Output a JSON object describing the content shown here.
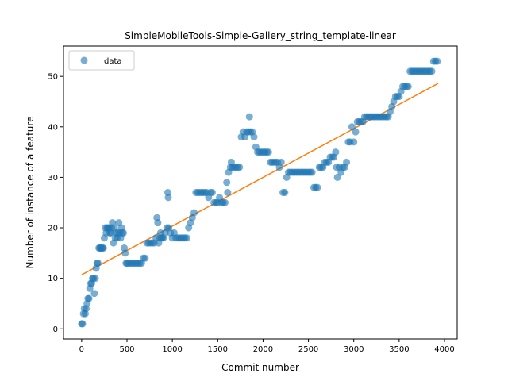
{
  "chart_data": {
    "type": "scatter",
    "title": "SimpleMobileTools-Simple-Gallery_string_template-linear",
    "xlabel": "Commit number",
    "ylabel": "Number of instance of a feature",
    "xlim": [
      -200,
      4140
    ],
    "ylim": [
      -2,
      56
    ],
    "xticks": [
      0,
      500,
      1000,
      1500,
      2000,
      2500,
      3000,
      3500,
      4000
    ],
    "yticks": [
      0,
      10,
      20,
      30,
      40,
      50
    ],
    "grid": false,
    "legend": {
      "position": "top-left",
      "entries": [
        "data"
      ]
    },
    "colors": {
      "data": "#1f77b4",
      "fit": "#ff7f0e"
    },
    "series": [
      {
        "name": "data",
        "kind": "scatter",
        "points": [
          [
            0,
            1
          ],
          [
            10,
            1
          ],
          [
            20,
            3
          ],
          [
            30,
            4
          ],
          [
            40,
            3
          ],
          [
            50,
            4
          ],
          [
            60,
            5
          ],
          [
            70,
            6
          ],
          [
            80,
            6
          ],
          [
            90,
            8
          ],
          [
            100,
            9
          ],
          [
            110,
            9
          ],
          [
            120,
            10
          ],
          [
            130,
            10
          ],
          [
            140,
            7
          ],
          [
            150,
            10
          ],
          [
            160,
            12
          ],
          [
            170,
            13
          ],
          [
            180,
            13
          ],
          [
            190,
            16
          ],
          [
            200,
            16
          ],
          [
            210,
            16
          ],
          [
            220,
            16
          ],
          [
            230,
            16
          ],
          [
            240,
            16
          ],
          [
            250,
            18
          ],
          [
            260,
            20
          ],
          [
            270,
            19
          ],
          [
            280,
            20
          ],
          [
            290,
            20
          ],
          [
            300,
            20
          ],
          [
            310,
            19
          ],
          [
            320,
            19
          ],
          [
            330,
            20
          ],
          [
            340,
            21
          ],
          [
            350,
            17
          ],
          [
            360,
            20
          ],
          [
            370,
            18
          ],
          [
            380,
            19
          ],
          [
            390,
            18
          ],
          [
            400,
            19
          ],
          [
            410,
            21
          ],
          [
            420,
            19
          ],
          [
            430,
            18
          ],
          [
            440,
            20
          ],
          [
            450,
            19
          ],
          [
            460,
            19
          ],
          [
            470,
            16
          ],
          [
            480,
            15
          ],
          [
            490,
            13
          ],
          [
            500,
            13
          ],
          [
            520,
            13
          ],
          [
            540,
            13
          ],
          [
            560,
            13
          ],
          [
            580,
            13
          ],
          [
            600,
            13
          ],
          [
            620,
            13
          ],
          [
            640,
            13
          ],
          [
            660,
            13
          ],
          [
            680,
            14
          ],
          [
            700,
            14
          ],
          [
            720,
            17
          ],
          [
            740,
            17
          ],
          [
            760,
            17
          ],
          [
            780,
            17
          ],
          [
            800,
            17
          ],
          [
            820,
            18
          ],
          [
            830,
            22
          ],
          [
            840,
            21
          ],
          [
            850,
            17
          ],
          [
            860,
            18
          ],
          [
            870,
            19
          ],
          [
            880,
            18
          ],
          [
            890,
            18
          ],
          [
            900,
            18
          ],
          [
            920,
            19
          ],
          [
            940,
            20
          ],
          [
            950,
            27
          ],
          [
            955,
            26
          ],
          [
            960,
            20
          ],
          [
            980,
            19
          ],
          [
            1000,
            18
          ],
          [
            1020,
            19
          ],
          [
            1040,
            18
          ],
          [
            1060,
            18
          ],
          [
            1080,
            18
          ],
          [
            1100,
            18
          ],
          [
            1120,
            18
          ],
          [
            1140,
            18
          ],
          [
            1160,
            18
          ],
          [
            1180,
            20
          ],
          [
            1200,
            21
          ],
          [
            1220,
            22
          ],
          [
            1240,
            23
          ],
          [
            1260,
            27
          ],
          [
            1280,
            27
          ],
          [
            1300,
            27
          ],
          [
            1320,
            27
          ],
          [
            1340,
            27
          ],
          [
            1360,
            27
          ],
          [
            1380,
            27
          ],
          [
            1400,
            26
          ],
          [
            1420,
            27
          ],
          [
            1440,
            27
          ],
          [
            1460,
            25
          ],
          [
            1480,
            25
          ],
          [
            1500,
            25
          ],
          [
            1520,
            26
          ],
          [
            1540,
            25
          ],
          [
            1560,
            25
          ],
          [
            1580,
            25
          ],
          [
            1600,
            29
          ],
          [
            1610,
            27
          ],
          [
            1620,
            31
          ],
          [
            1640,
            32
          ],
          [
            1650,
            33
          ],
          [
            1660,
            32
          ],
          [
            1680,
            32
          ],
          [
            1700,
            32
          ],
          [
            1720,
            32
          ],
          [
            1740,
            32
          ],
          [
            1760,
            38
          ],
          [
            1780,
            39
          ],
          [
            1800,
            38
          ],
          [
            1820,
            39
          ],
          [
            1840,
            39
          ],
          [
            1850,
            42
          ],
          [
            1860,
            39
          ],
          [
            1880,
            39
          ],
          [
            1900,
            38
          ],
          [
            1920,
            36
          ],
          [
            1940,
            35
          ],
          [
            1960,
            35
          ],
          [
            1980,
            35
          ],
          [
            2000,
            35
          ],
          [
            2020,
            35
          ],
          [
            2040,
            35
          ],
          [
            2060,
            35
          ],
          [
            2080,
            33
          ],
          [
            2100,
            33
          ],
          [
            2120,
            33
          ],
          [
            2140,
            33
          ],
          [
            2160,
            33
          ],
          [
            2180,
            32
          ],
          [
            2200,
            33
          ],
          [
            2220,
            27
          ],
          [
            2240,
            27
          ],
          [
            2260,
            30
          ],
          [
            2280,
            31
          ],
          [
            2300,
            31
          ],
          [
            2320,
            31
          ],
          [
            2340,
            31
          ],
          [
            2360,
            31
          ],
          [
            2380,
            31
          ],
          [
            2400,
            31
          ],
          [
            2420,
            31
          ],
          [
            2440,
            31
          ],
          [
            2460,
            31
          ],
          [
            2480,
            31
          ],
          [
            2500,
            31
          ],
          [
            2520,
            31
          ],
          [
            2540,
            31
          ],
          [
            2560,
            28
          ],
          [
            2580,
            28
          ],
          [
            2600,
            28
          ],
          [
            2620,
            32
          ],
          [
            2640,
            32
          ],
          [
            2660,
            32
          ],
          [
            2680,
            33
          ],
          [
            2700,
            33
          ],
          [
            2720,
            33
          ],
          [
            2740,
            34
          ],
          [
            2760,
            34
          ],
          [
            2780,
            34
          ],
          [
            2800,
            35
          ],
          [
            2810,
            32
          ],
          [
            2820,
            30
          ],
          [
            2840,
            32
          ],
          [
            2860,
            31
          ],
          [
            2880,
            32
          ],
          [
            2900,
            32
          ],
          [
            2920,
            33
          ],
          [
            2940,
            37
          ],
          [
            2960,
            37
          ],
          [
            2980,
            40
          ],
          [
            3000,
            37
          ],
          [
            3020,
            39
          ],
          [
            3040,
            41
          ],
          [
            3060,
            41
          ],
          [
            3080,
            41
          ],
          [
            3100,
            41
          ],
          [
            3120,
            42
          ],
          [
            3140,
            42
          ],
          [
            3160,
            42
          ],
          [
            3180,
            42
          ],
          [
            3200,
            42
          ],
          [
            3220,
            42
          ],
          [
            3240,
            42
          ],
          [
            3260,
            42
          ],
          [
            3280,
            42
          ],
          [
            3300,
            42
          ],
          [
            3320,
            42
          ],
          [
            3340,
            42
          ],
          [
            3360,
            42
          ],
          [
            3380,
            42
          ],
          [
            3400,
            43
          ],
          [
            3420,
            44
          ],
          [
            3440,
            45
          ],
          [
            3460,
            46
          ],
          [
            3480,
            46
          ],
          [
            3500,
            46
          ],
          [
            3520,
            47
          ],
          [
            3540,
            48
          ],
          [
            3560,
            48
          ],
          [
            3580,
            48
          ],
          [
            3600,
            48
          ],
          [
            3620,
            51
          ],
          [
            3640,
            51
          ],
          [
            3660,
            51
          ],
          [
            3680,
            51
          ],
          [
            3700,
            51
          ],
          [
            3720,
            51
          ],
          [
            3740,
            51
          ],
          [
            3760,
            51
          ],
          [
            3780,
            51
          ],
          [
            3800,
            51
          ],
          [
            3820,
            51
          ],
          [
            3840,
            51
          ],
          [
            3860,
            51
          ],
          [
            3880,
            53
          ],
          [
            3900,
            53
          ],
          [
            3920,
            53
          ]
        ]
      },
      {
        "kind": "line",
        "points": [
          [
            0,
            10.7
          ],
          [
            3930,
            48.6
          ]
        ]
      }
    ]
  }
}
